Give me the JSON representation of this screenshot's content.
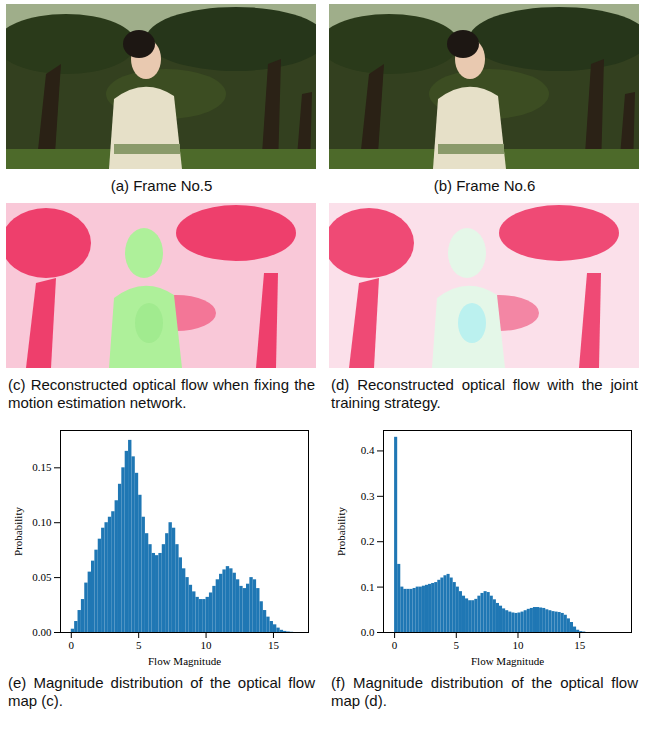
{
  "panels": [
    {
      "caption": "(a) Frame No.5"
    },
    {
      "caption": "(b) Frame No.6"
    },
    {
      "caption": "(c) Reconstructed optical flow when fixing the motion estimation network."
    },
    {
      "caption": "(d) Reconstructed optical flow with the joint training strategy."
    }
  ],
  "chart_data": [
    {
      "type": "histogram",
      "caption": "(e) Magnitude distribution of the optical flow map (c).",
      "x_label": "Flow Magnitude",
      "y_label": "Probability",
      "color": "#1f77b4",
      "bins": [
        0,
        0.25,
        0.5,
        0.75,
        1,
        1.25,
        1.5,
        1.75,
        2,
        2.25,
        2.5,
        2.75,
        3,
        3.25,
        3.5,
        3.75,
        4,
        4.25,
        4.5,
        4.75,
        5,
        5.25,
        5.5,
        5.75,
        6,
        6.25,
        6.5,
        6.75,
        7,
        7.25,
        7.5,
        7.75,
        8,
        8.25,
        8.5,
        8.75,
        9,
        9.25,
        9.5,
        9.75,
        10,
        10.25,
        10.5,
        10.75,
        11,
        11.25,
        11.5,
        11.75,
        12,
        12.25,
        12.5,
        12.75,
        13,
        13.25,
        13.5,
        13.75,
        14,
        14.25,
        14.5,
        14.75,
        15,
        15.25,
        15.5,
        15.75,
        16,
        16.25,
        16.5
      ],
      "counts": [
        0.003,
        0.01,
        0.02,
        0.03,
        0.045,
        0.055,
        0.065,
        0.075,
        0.085,
        0.095,
        0.1,
        0.105,
        0.11,
        0.12,
        0.135,
        0.15,
        0.165,
        0.175,
        0.16,
        0.145,
        0.125,
        0.105,
        0.09,
        0.08,
        0.072,
        0.07,
        0.072,
        0.08,
        0.09,
        0.1,
        0.095,
        0.08,
        0.068,
        0.058,
        0.05,
        0.043,
        0.037,
        0.032,
        0.03,
        0.03,
        0.032,
        0.036,
        0.042,
        0.048,
        0.053,
        0.057,
        0.06,
        0.058,
        0.054,
        0.048,
        0.042,
        0.04,
        0.044,
        0.05,
        0.048,
        0.04,
        0.028,
        0.02,
        0.014,
        0.01,
        0.007,
        0.004,
        0.002,
        0.001,
        0.0005,
        0.0002
      ],
      "xlim": [
        -0.8,
        17.6
      ],
      "xticks": [
        0,
        5,
        10,
        15
      ],
      "ylim": [
        0,
        0.184
      ],
      "yticks": [
        {
          "value": 0,
          "label": "0.00"
        },
        {
          "value": 0.05,
          "label": "0.05"
        },
        {
          "value": 0.1,
          "label": "0.10"
        },
        {
          "value": 0.15,
          "label": "0.15"
        }
      ]
    },
    {
      "type": "histogram",
      "caption": "(f) Magnitude distribution of the optical flow map (d).",
      "x_label": "Flow Magnitude",
      "y_label": "Probability",
      "color": "#1f77b4",
      "bins": [
        0,
        0.25,
        0.5,
        0.75,
        1,
        1.25,
        1.5,
        1.75,
        2,
        2.25,
        2.5,
        2.75,
        3,
        3.25,
        3.5,
        3.75,
        4,
        4.25,
        4.5,
        4.75,
        5,
        5.25,
        5.5,
        5.75,
        6,
        6.25,
        6.5,
        6.75,
        7,
        7.25,
        7.5,
        7.75,
        8,
        8.25,
        8.5,
        8.75,
        9,
        9.25,
        9.5,
        9.75,
        10,
        10.25,
        10.5,
        10.75,
        11,
        11.25,
        11.5,
        11.75,
        12,
        12.25,
        12.5,
        12.75,
        13,
        13.25,
        13.5,
        13.75,
        14,
        14.25,
        14.5,
        14.75,
        15,
        15.25,
        15.5
      ],
      "counts": [
        0.43,
        0.15,
        0.1,
        0.095,
        0.095,
        0.095,
        0.097,
        0.1,
        0.1,
        0.102,
        0.104,
        0.106,
        0.108,
        0.11,
        0.115,
        0.12,
        0.125,
        0.128,
        0.12,
        0.11,
        0.1,
        0.09,
        0.08,
        0.074,
        0.07,
        0.07,
        0.073,
        0.08,
        0.086,
        0.09,
        0.088,
        0.08,
        0.072,
        0.064,
        0.058,
        0.052,
        0.048,
        0.045,
        0.043,
        0.042,
        0.043,
        0.045,
        0.048,
        0.051,
        0.053,
        0.055,
        0.055,
        0.054,
        0.053,
        0.05,
        0.048,
        0.046,
        0.045,
        0.044,
        0.042,
        0.038,
        0.03,
        0.022,
        0.012,
        0.005,
        0.002,
        0.001
      ],
      "xlim": [
        -0.9,
        19.2
      ],
      "xticks": [
        0,
        5,
        10,
        15
      ],
      "ylim": [
        0,
        0.445
      ],
      "yticks": [
        {
          "value": 0,
          "label": "0.0"
        },
        {
          "value": 0.1,
          "label": "0.1"
        },
        {
          "value": 0.2,
          "label": "0.2"
        },
        {
          "value": 0.3,
          "label": "0.3"
        },
        {
          "value": 0.4,
          "label": "0.4"
        }
      ]
    }
  ]
}
